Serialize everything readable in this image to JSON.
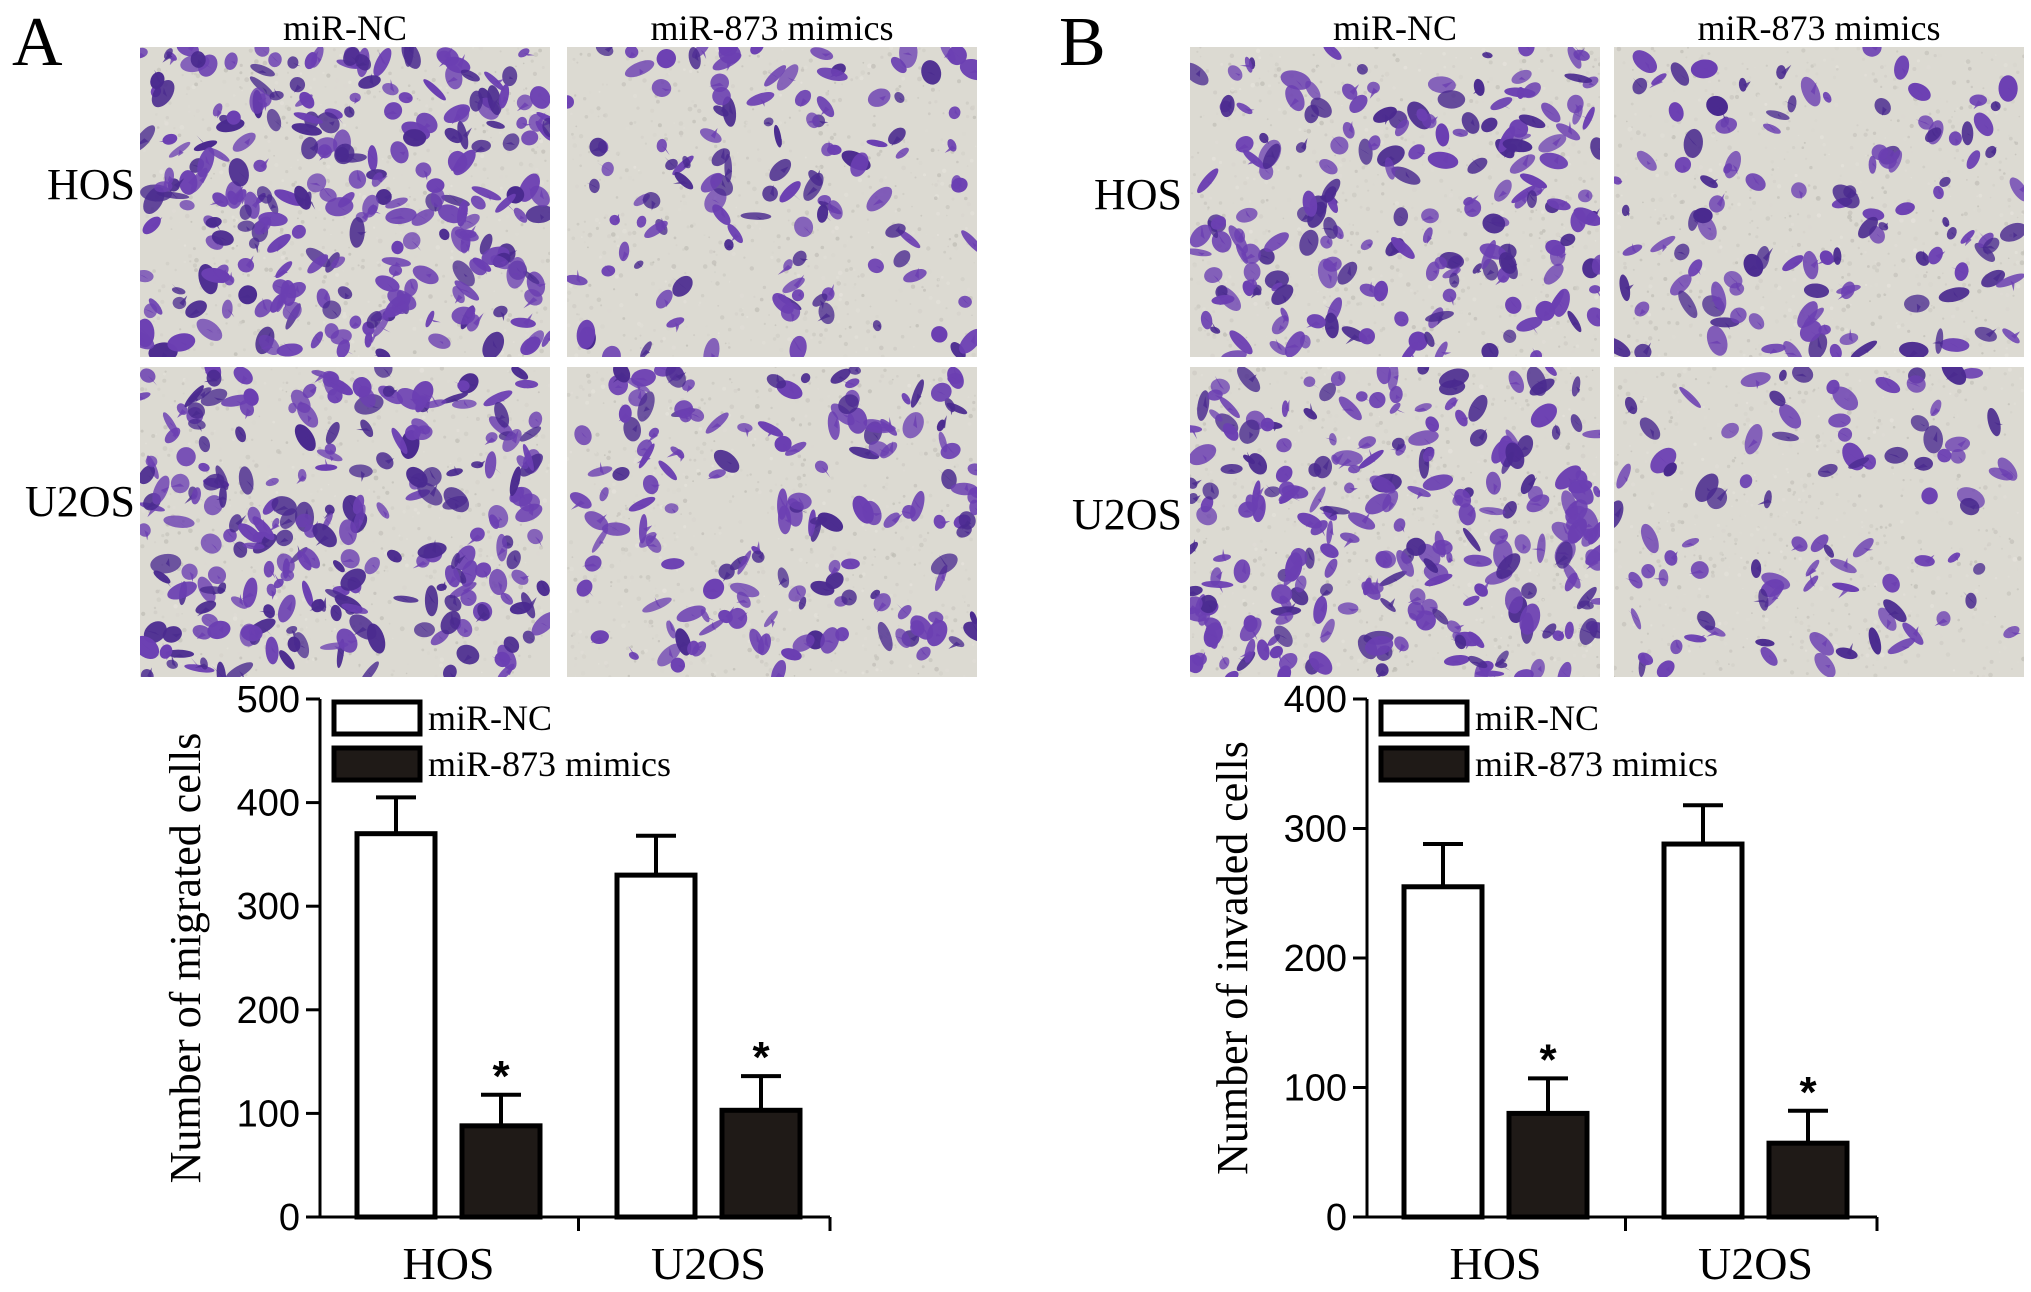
{
  "figure": {
    "panels": [
      {
        "letter": "A",
        "columns": [
          "miR-NC",
          "miR-873 mimics"
        ],
        "rows": [
          "HOS",
          "U2OS"
        ],
        "micrograph_colors": {
          "background": "#dcdad2",
          "stain": "#6b3fb2",
          "stain_dark": "#4a2a8f"
        },
        "micrograph_density": [
          [
            1.0,
            0.45
          ],
          [
            0.95,
            0.6
          ]
        ]
      },
      {
        "letter": "B",
        "columns": [
          "miR-NC",
          "miR-873 mimics"
        ],
        "rows": [
          "HOS",
          "U2OS"
        ],
        "micrograph_colors": {
          "background": "#dcdad2",
          "stain": "#6b3fb2",
          "stain_dark": "#4a2a8f"
        },
        "micrograph_density": [
          [
            0.75,
            0.45
          ],
          [
            0.95,
            0.35
          ]
        ]
      }
    ]
  },
  "chart_data": [
    {
      "type": "bar",
      "categories": [
        "HOS",
        "U2OS"
      ],
      "ylabel": "Number of migrated cells",
      "ylim": [
        0,
        500
      ],
      "yticks": [
        0,
        100,
        200,
        300,
        400,
        500
      ],
      "series": [
        {
          "name": "miR-NC",
          "values": [
            370,
            330
          ],
          "errors": [
            35,
            38
          ],
          "fill": "#ffffff",
          "significance": [
            "",
            ""
          ]
        },
        {
          "name": "miR-873 mimics",
          "values": [
            88,
            103
          ],
          "errors": [
            30,
            33
          ],
          "fill": "#1f1a17",
          "significance": [
            "*",
            "*"
          ]
        }
      ],
      "legend_position": "top-left"
    },
    {
      "type": "bar",
      "categories": [
        "HOS",
        "U2OS"
      ],
      "ylabel": "Number of invaded cells",
      "ylim": [
        0,
        400
      ],
      "yticks": [
        0,
        100,
        200,
        300,
        400
      ],
      "series": [
        {
          "name": "miR-NC",
          "values": [
            255,
            288
          ],
          "errors": [
            33,
            30
          ],
          "fill": "#ffffff",
          "significance": [
            "",
            ""
          ]
        },
        {
          "name": "miR-873 mimics",
          "values": [
            80,
            57
          ],
          "errors": [
            27,
            25
          ],
          "fill": "#1f1a17",
          "significance": [
            "*",
            "*"
          ]
        }
      ],
      "legend_position": "top-left"
    }
  ]
}
